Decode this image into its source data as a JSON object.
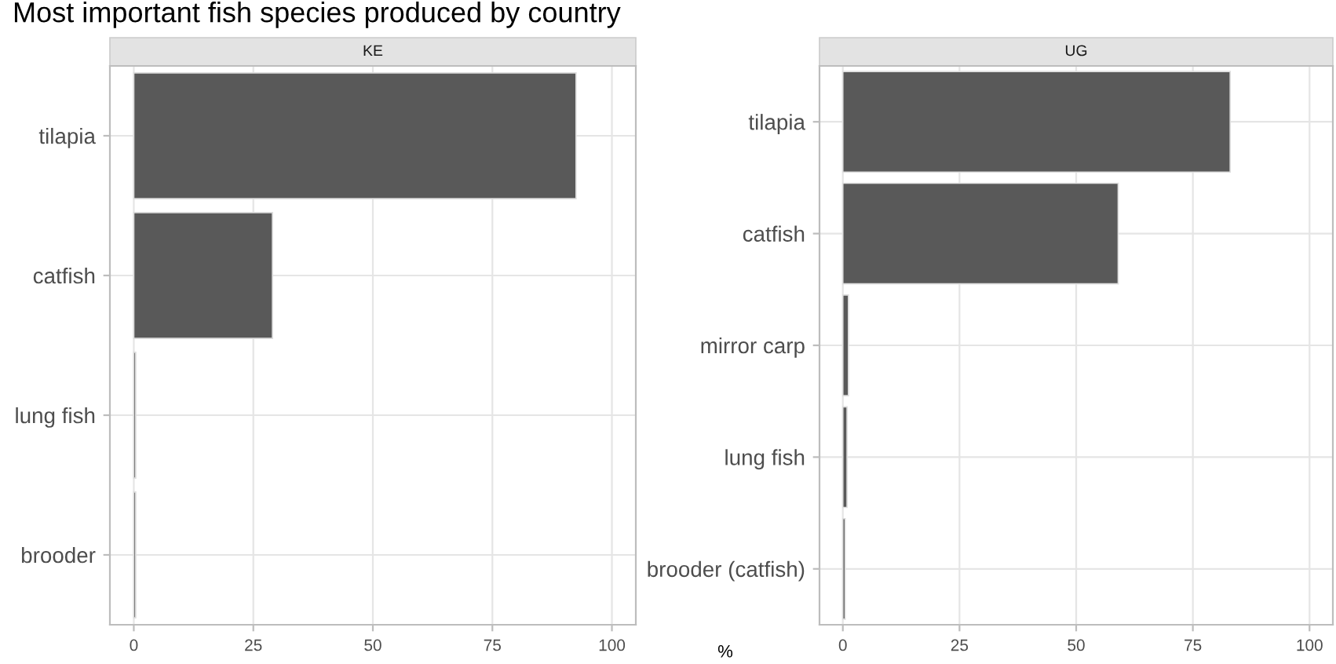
{
  "chart_data": [
    {
      "type": "bar",
      "title": "Most important fish species produced by country",
      "subtitle": "KE",
      "xlabel": "%",
      "orientation": "horizontal",
      "categories": [
        "tilapia",
        "catfish",
        "lung fish",
        "brooder"
      ],
      "values": [
        92.5,
        29,
        0.4,
        0.4
      ],
      "color": "#595959",
      "xlim": [
        -5,
        105
      ],
      "xticks": [
        0,
        25,
        50,
        75,
        100
      ],
      "grid": true
    },
    {
      "type": "bar",
      "subtitle": "UG",
      "orientation": "horizontal",
      "categories": [
        "tilapia",
        "catfish",
        "mirror carp",
        "lung fish",
        "brooder (catfish)"
      ],
      "values": [
        83,
        59,
        1.2,
        0.9,
        0.5
      ],
      "color": "#595959",
      "xlim": [
        -5,
        105
      ],
      "xticks": [
        0,
        25,
        50,
        75,
        100
      ],
      "grid": true
    }
  ]
}
